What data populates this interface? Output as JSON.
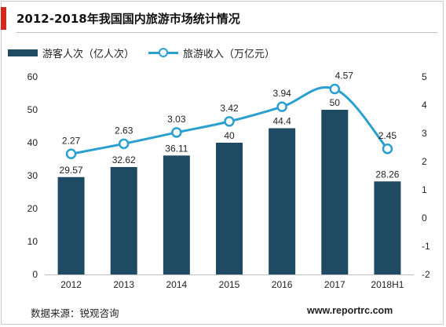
{
  "title": "2012-2018年我国国内旅游市场统计情况",
  "legend": {
    "bar_label": "游客人次（亿人次）",
    "line_label": "旅游收入（万亿元）"
  },
  "source": "数据来源：锐观咨询",
  "website": "www.reportrc.com",
  "colors": {
    "bar": "#1e4a63",
    "line": "#2a9fd0",
    "accent": "#d7261e"
  },
  "chart_data": {
    "type": "bar",
    "title": "2012-2018年我国国内旅游市场统计情况",
    "categories": [
      "2012",
      "2013",
      "2014",
      "2015",
      "2016",
      "2017",
      "2018H1"
    ],
    "series": [
      {
        "name": "游客人次（亿人次）",
        "type": "bar",
        "axis": "left",
        "values": [
          29.57,
          32.62,
          36.11,
          40,
          44.4,
          50,
          28.26
        ],
        "labels": [
          "29.57",
          "32.62",
          "36.11",
          "40",
          "44.4",
          "50",
          "28.26"
        ]
      },
      {
        "name": "旅游收入（万亿元）",
        "type": "line",
        "axis": "right",
        "values": [
          2.27,
          2.63,
          3.03,
          3.42,
          3.94,
          4.57,
          2.45
        ],
        "labels": [
          "2.27",
          "2.63",
          "3.03",
          "3.42",
          "3.94",
          "4.57",
          "2.45"
        ]
      }
    ],
    "y_left": {
      "min": 0,
      "max": 60,
      "ticks": [
        "0",
        "10",
        "20",
        "30",
        "40",
        "50",
        "60"
      ]
    },
    "y_right": {
      "min": -2,
      "max": 5,
      "ticks": [
        "-2",
        "-1",
        "0",
        "1",
        "2",
        "3",
        "4",
        "5"
      ]
    },
    "grid": false,
    "legend_position": "top-left"
  }
}
